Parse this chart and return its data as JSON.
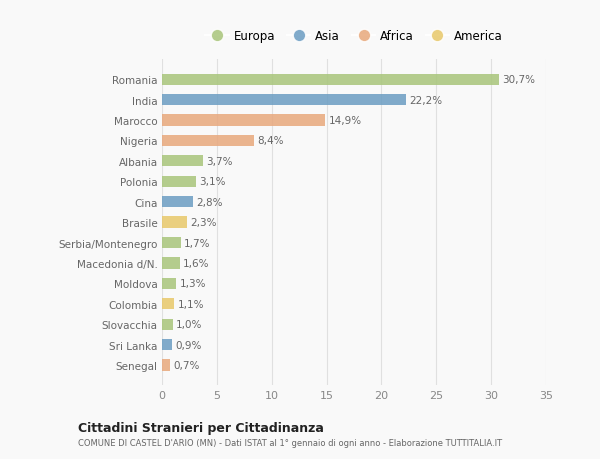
{
  "countries": [
    "Romania",
    "India",
    "Marocco",
    "Nigeria",
    "Albania",
    "Polonia",
    "Cina",
    "Brasile",
    "Serbia/Montenegro",
    "Macedonia d/N.",
    "Moldova",
    "Colombia",
    "Slovacchia",
    "Sri Lanka",
    "Senegal"
  ],
  "values": [
    30.7,
    22.2,
    14.9,
    8.4,
    3.7,
    3.1,
    2.8,
    2.3,
    1.7,
    1.6,
    1.3,
    1.1,
    1.0,
    0.9,
    0.7
  ],
  "labels": [
    "30,7%",
    "22,2%",
    "14,9%",
    "8,4%",
    "3,7%",
    "3,1%",
    "2,8%",
    "2,3%",
    "1,7%",
    "1,6%",
    "1,3%",
    "1,1%",
    "1,0%",
    "0,9%",
    "0,7%"
  ],
  "colors": [
    "#a8c57a",
    "#6b9dc2",
    "#e8a87c",
    "#e8a87c",
    "#a8c57a",
    "#a8c57a",
    "#6b9dc2",
    "#e8c86a",
    "#a8c57a",
    "#a8c57a",
    "#a8c57a",
    "#e8c86a",
    "#a8c57a",
    "#6b9dc2",
    "#e8a87c"
  ],
  "legend_labels": [
    "Europa",
    "Asia",
    "Africa",
    "America"
  ],
  "legend_colors": [
    "#a8c57a",
    "#6b9dc2",
    "#e8a87c",
    "#e8c86a"
  ],
  "title1": "Cittadini Stranieri per Cittadinanza",
  "title2": "COMUNE DI CASTEL D'ARIO (MN) - Dati ISTAT al 1° gennaio di ogni anno - Elaborazione TUTTITALIA.IT",
  "xlim": [
    0,
    35
  ],
  "xticks": [
    0,
    5,
    10,
    15,
    20,
    25,
    30,
    35
  ],
  "background_color": "#f9f9f9",
  "grid_color": "#e0e0e0",
  "bar_height": 0.55
}
